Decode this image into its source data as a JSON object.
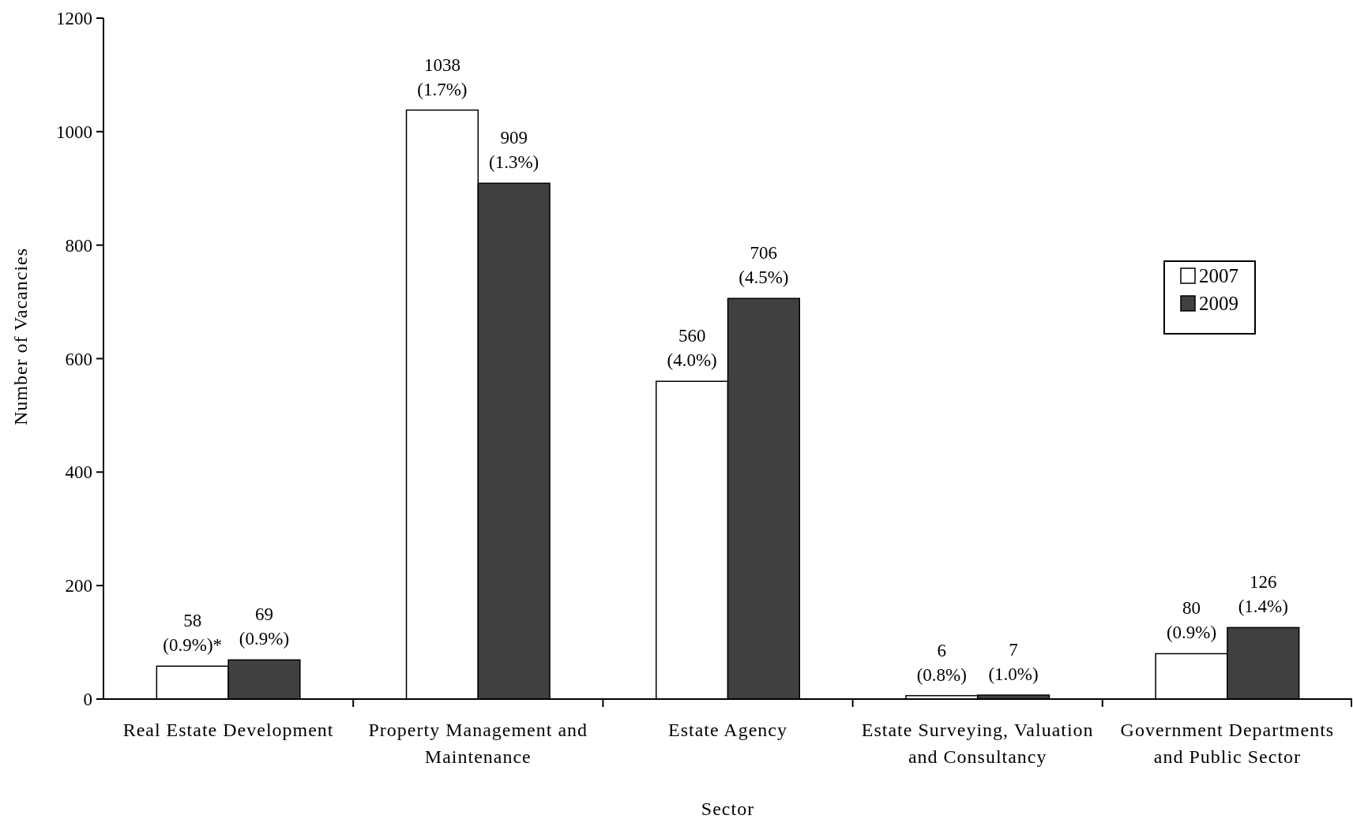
{
  "chart_data": {
    "type": "bar",
    "xlabel": "Sector",
    "ylabel": "Number of Vacancies",
    "categories": [
      "Real Estate Development",
      "Property Management and Maintenance",
      "Estate Agency",
      "Estate Surveying, Valuation and Consultancy",
      "Government Departments and Public Sector"
    ],
    "series": [
      {
        "name": "2007",
        "color": "#ffffff",
        "values": [
          58,
          1038,
          560,
          6,
          80
        ],
        "value_labels": [
          "58\n(0.9%)*",
          "1038\n(1.7%)",
          "560\n(4.0%)",
          "6\n(0.8%)",
          "80\n(0.9%)"
        ]
      },
      {
        "name": "2009",
        "color": "#404040",
        "values": [
          69,
          909,
          706,
          7,
          126
        ],
        "value_labels": [
          "69\n(0.9%)",
          "909\n(1.3%)",
          "706\n(4.5%)",
          "7\n(1.0%)",
          "126\n(1.4%)"
        ]
      }
    ],
    "ylim": [
      0,
      1200
    ],
    "yticks": [
      0,
      200,
      400,
      600,
      800,
      1000,
      1200
    ],
    "legend": "top right"
  }
}
